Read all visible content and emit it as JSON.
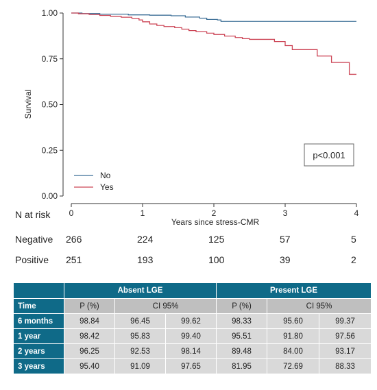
{
  "chart_data": {
    "type": "line",
    "xlabel": "Years since stress-CMR",
    "ylabel": "Survival",
    "xlim": [
      0,
      4
    ],
    "ylim": [
      0,
      1
    ],
    "x_ticks": [
      "0",
      "1",
      "2",
      "3",
      "4"
    ],
    "y_ticks": [
      "0.00",
      "0.25",
      "0.50",
      "0.75",
      "1.00"
    ],
    "annotation": "p<0.001",
    "legend_position": "bottom-left",
    "series": [
      {
        "name": "No",
        "color": "#3b6e96",
        "x": [
          0,
          0.15,
          0.4,
          0.8,
          1.1,
          1.4,
          1.6,
          1.8,
          1.9,
          2.05,
          2.1,
          4.0
        ],
        "y": [
          1.0,
          0.997,
          0.994,
          0.99,
          0.988,
          0.985,
          0.978,
          0.972,
          0.965,
          0.962,
          0.954,
          0.954
        ]
      },
      {
        "name": "Yes",
        "color": "#cc4455",
        "x": [
          0,
          0.1,
          0.25,
          0.4,
          0.55,
          0.7,
          0.85,
          0.95,
          1.0,
          1.1,
          1.2,
          1.3,
          1.45,
          1.55,
          1.65,
          1.75,
          1.9,
          2.0,
          2.15,
          2.3,
          2.4,
          2.5,
          2.7,
          2.85,
          3.0,
          3.1,
          3.25,
          3.45,
          3.65,
          3.75,
          3.9,
          4.0
        ],
        "y": [
          1.0,
          0.996,
          0.992,
          0.987,
          0.982,
          0.977,
          0.971,
          0.962,
          0.952,
          0.94,
          0.932,
          0.926,
          0.92,
          0.912,
          0.904,
          0.898,
          0.89,
          0.883,
          0.874,
          0.866,
          0.86,
          0.856,
          0.856,
          0.844,
          0.822,
          0.8,
          0.8,
          0.765,
          0.73,
          0.73,
          0.665,
          0.665
        ]
      }
    ]
  },
  "risk_table": {
    "title": "N at risk",
    "rows": [
      {
        "label": "Negative",
        "values": [
          "266",
          "224",
          "125",
          "57",
          "5"
        ]
      },
      {
        "label": "Positive",
        "values": [
          "251",
          "193",
          "100",
          "39",
          "2"
        ]
      }
    ]
  },
  "summary_table": {
    "group_headers": [
      "Absent LGE",
      "Present LGE"
    ],
    "time_header": "Time",
    "sub_headers": [
      "P (%)",
      "CI 95%",
      "P (%)",
      "CI 95%"
    ],
    "rows": [
      {
        "time": "6 months",
        "a_p": "98.84",
        "a_lo": "96.45",
        "a_hi": "99.62",
        "b_p": "98.33",
        "b_lo": "95.60",
        "b_hi": "99.37"
      },
      {
        "time": "1 year",
        "a_p": "98.42",
        "a_lo": "95.83",
        "a_hi": "99.40",
        "b_p": "95.51",
        "b_lo": "91.80",
        "b_hi": "97.56"
      },
      {
        "time": "2 years",
        "a_p": "96.25",
        "a_lo": "92.53",
        "a_hi": "98.14",
        "b_p": "89.48",
        "b_lo": "84.00",
        "b_hi": "93.17"
      },
      {
        "time": "3 years",
        "a_p": "95.40",
        "a_lo": "91.09",
        "a_hi": "97.65",
        "b_p": "81.95",
        "b_lo": "72.69",
        "b_hi": "88.33"
      }
    ]
  }
}
